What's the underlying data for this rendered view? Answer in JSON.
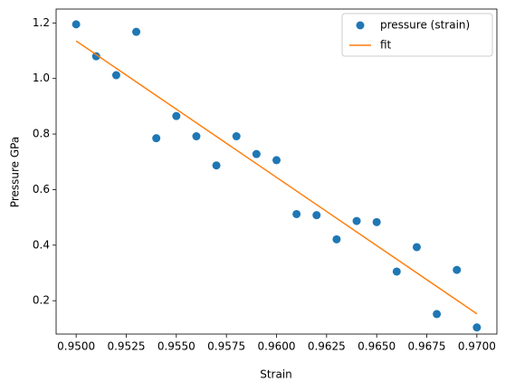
{
  "chart_data": {
    "type": "scatter",
    "x_label": "Strain",
    "y_label": "Pressure GPa",
    "xlim": [
      0.949,
      0.971
    ],
    "ylim": [
      0.08,
      1.25
    ],
    "xticks": [
      {
        "value": 0.95,
        "label": "0.9500"
      },
      {
        "value": 0.9525,
        "label": "0.9525"
      },
      {
        "value": 0.955,
        "label": "0.9550"
      },
      {
        "value": 0.9575,
        "label": "0.9575"
      },
      {
        "value": 0.96,
        "label": "0.9600"
      },
      {
        "value": 0.9625,
        "label": "0.9625"
      },
      {
        "value": 0.965,
        "label": "0.9650"
      },
      {
        "value": 0.9675,
        "label": "0.9675"
      },
      {
        "value": 0.97,
        "label": "0.9700"
      }
    ],
    "yticks": [
      0.2,
      0.4,
      0.6,
      0.8,
      {
        "value": 1,
        "label": "1.0"
      },
      1.2
    ],
    "legend": "upper right",
    "series": [
      {
        "name": "pressure (strain)",
        "type": "scatter",
        "color": "#1f77b4",
        "x": [
          0.95,
          0.951,
          0.952,
          0.953,
          0.954,
          0.955,
          0.956,
          0.957,
          0.958,
          0.959,
          0.96,
          0.961,
          0.962,
          0.963,
          0.964,
          0.965,
          0.966,
          0.967,
          0.968,
          0.969,
          0.97
        ],
        "values": [
          1.195,
          1.08,
          1.012,
          1.168,
          0.785,
          0.865,
          0.792,
          0.687,
          0.792,
          0.728,
          0.706,
          0.512,
          0.508,
          0.421,
          0.487,
          0.483,
          0.305,
          0.393,
          0.152,
          0.311,
          0.104
        ]
      },
      {
        "name": "fit",
        "type": "line",
        "color": "#ff7f0e",
        "x": [
          0.95,
          0.97
        ],
        "values": [
          1.135,
          0.153
        ]
      }
    ]
  }
}
